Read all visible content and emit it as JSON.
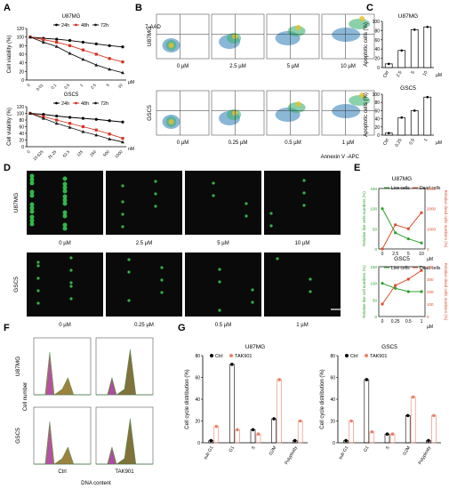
{
  "panels": {
    "A": "A",
    "B": "B",
    "C": "C",
    "D": "D",
    "E": "E",
    "F": "F",
    "G": "G"
  },
  "colors": {
    "c24h": "#000000",
    "c48h": "#d7301f",
    "c72h": "#1a1a1a",
    "live": "#2ca02c",
    "dead": "#d94f2a",
    "ctrl": "#000000",
    "tak": "#e8826b",
    "flowbg": "#2c7bb6",
    "micro_bg": "#0a0a0a",
    "micro_cell": "#39d353"
  },
  "A": {
    "top": {
      "cell": "U87MG",
      "legend": [
        "24h",
        "48h",
        "72h"
      ],
      "ylabel": "Cell viability (%)",
      "yticks": [
        "0",
        "20",
        "40",
        "60",
        "80",
        "100",
        "120"
      ],
      "xticks": [
        "0",
        "0.01",
        "0.1",
        "0.5",
        "1",
        "2.5",
        "5",
        "10"
      ],
      "unit": "µM"
    },
    "bottom": {
      "cell": "GSC5",
      "legend": [
        "24h",
        "48h",
        "72h"
      ],
      "ylabel": "Cell viability (%)",
      "yticks": [
        "0",
        "20",
        "40",
        "60",
        "80",
        "100",
        "120"
      ],
      "xticks": [
        "0",
        "15.625",
        "31.25",
        "62.5",
        "125",
        "250",
        "500",
        "1000"
      ],
      "unit": "nM"
    }
  },
  "B": {
    "ylabel": "7-AAD",
    "xlabel": "Annexin V -APC",
    "row1": {
      "cell": "U87MG",
      "doses": [
        "0 µM",
        "2.5 µM",
        "5 µM",
        "10 µM"
      ]
    },
    "row2": {
      "cell": "GSC5",
      "doses": [
        "0 µM",
        "0.25 µM",
        "0.5 µM",
        "1 µM"
      ]
    }
  },
  "C": {
    "top": {
      "cell": "U87MG",
      "ylabel": "Apoptotic cells (%)",
      "yticks": [
        "0",
        "20",
        "40",
        "60",
        "80",
        "100"
      ],
      "xticks": [
        "Ctrl",
        "2.5",
        "5",
        "10"
      ],
      "unit": "µM"
    },
    "bottom": {
      "cell": "GSC5",
      "ylabel": "Apoptotic cells (%)",
      "yticks": [
        "0",
        "20",
        "40",
        "60",
        "80",
        "100"
      ],
      "xticks": [
        "Ctrl",
        "0.25",
        "0.5",
        "1"
      ],
      "unit": "µM"
    }
  },
  "D": {
    "row1": {
      "cell": "U87MG",
      "doses": [
        "0 µM",
        "2.5 µM",
        "5 µM",
        "10 µM"
      ]
    },
    "row2": {
      "cell": "GSC5",
      "doses": [
        "0 µM",
        "0.25 µM",
        "0.5 µM",
        "1 µM"
      ]
    }
  },
  "E": {
    "top": {
      "cell": "U87MG",
      "legend": [
        "Live cells",
        "Dead cells"
      ],
      "ylabel_left": "Relative live cells numbers (%)",
      "ylabel_right": "Relative dead cells numbers (%)",
      "yticks_left": [
        "0",
        "50",
        "100",
        "150"
      ],
      "yticks_right": [
        "0",
        "1000",
        "2000",
        "3000"
      ],
      "xticks": [
        "0",
        "2.5",
        "5",
        "10"
      ],
      "unit": "µM"
    },
    "bottom": {
      "cell": "GSC5",
      "legend": [
        "Live cells",
        "Dead cells"
      ],
      "ylabel_left": "Relative live cell numbers (%)",
      "ylabel_right": "Relative dead cells numbers (%)",
      "yticks_left": [
        "0",
        "50",
        "100",
        "150"
      ],
      "yticks_right": [
        "0",
        "100",
        "200",
        "300",
        "400"
      ],
      "xticks": [
        "0",
        "0.25",
        "0.5",
        "1"
      ],
      "unit": "µM"
    }
  },
  "F": {
    "ylabel": "Cell number",
    "xlabel": "DNA content",
    "rows": [
      "U87MG",
      "GSC5"
    ],
    "cols": [
      "Ctrl",
      "TAK901"
    ]
  },
  "G": {
    "legend": [
      "Ctrl",
      "TAK901"
    ],
    "left": {
      "cell": "U87MG",
      "ylabel": "Cell cycle distribution (%)",
      "yticks": [
        "0",
        "20",
        "40",
        "60",
        "80"
      ],
      "xticks": [
        "sub G1",
        "G1",
        "S",
        "G2M",
        "Polyploidy"
      ]
    },
    "right": {
      "cell": "GSC5",
      "ylabel": "Cell cycle distribution (%)",
      "yticks": [
        "0",
        "20",
        "40",
        "60",
        "80"
      ],
      "xticks": [
        "sub G1",
        "G1",
        "S",
        "G2M",
        "Polyploidy"
      ]
    }
  },
  "chart_data": [
    {
      "type": "line",
      "title": "U87MG",
      "ylabel": "Cell viability (%)",
      "ylim": [
        0,
        120
      ],
      "x": [
        "0",
        "0.01",
        "0.1",
        "0.5",
        "1",
        "2.5",
        "5",
        "10"
      ],
      "series": [
        {
          "name": "24h",
          "values": [
            100,
            97,
            95,
            92,
            88,
            84,
            80,
            77
          ]
        },
        {
          "name": "48h",
          "values": [
            100,
            94,
            88,
            80,
            70,
            60,
            50,
            42
          ]
        },
        {
          "name": "72h",
          "values": [
            100,
            88,
            78,
            62,
            48,
            35,
            25,
            17
          ]
        }
      ]
    },
    {
      "type": "line",
      "title": "GSC5",
      "ylabel": "Cell viability (%)",
      "ylim": [
        0,
        120
      ],
      "x": [
        "0",
        "15.625",
        "31.25",
        "62.5",
        "125",
        "250",
        "500",
        "1000"
      ],
      "series": [
        {
          "name": "24h",
          "values": [
            100,
            97,
            92,
            88,
            85,
            82,
            78,
            74
          ]
        },
        {
          "name": "48h",
          "values": [
            100,
            90,
            80,
            70,
            60,
            50,
            38,
            25
          ]
        },
        {
          "name": "72h",
          "values": [
            100,
            85,
            70,
            58,
            45,
            35,
            23,
            14
          ]
        }
      ]
    },
    {
      "type": "bar",
      "title": "U87MG",
      "ylabel": "Apoptotic cells (%)",
      "ylim": [
        0,
        100
      ],
      "categories": [
        "Ctrl",
        "2.5",
        "5",
        "10"
      ],
      "values": [
        8,
        37,
        82,
        88
      ]
    },
    {
      "type": "bar",
      "title": "GSC5",
      "ylabel": "Apoptotic cells (%)",
      "ylim": [
        0,
        100
      ],
      "categories": [
        "Ctrl",
        "0.25",
        "0.5",
        "1"
      ],
      "values": [
        5,
        43,
        60,
        93
      ]
    },
    {
      "type": "line",
      "title": "U87MG",
      "x": [
        "0",
        "2.5",
        "5",
        "10"
      ],
      "series": [
        {
          "name": "Live cells",
          "axis": "left",
          "ylim": [
            0,
            150
          ],
          "values": [
            100,
            40,
            25,
            15
          ]
        },
        {
          "name": "Dead cells",
          "axis": "right",
          "ylim": [
            0,
            3000
          ],
          "values": [
            0,
            1200,
            1000,
            1800
          ]
        }
      ]
    },
    {
      "type": "line",
      "title": "GSC5",
      "x": [
        "0",
        "0.25",
        "0.5",
        "1"
      ],
      "series": [
        {
          "name": "Live cells",
          "axis": "left",
          "ylim": [
            0,
            150
          ],
          "values": [
            100,
            85,
            75,
            75
          ]
        },
        {
          "name": "Dead cells",
          "axis": "right",
          "ylim": [
            0,
            400
          ],
          "values": [
            100,
            250,
            300,
            370
          ]
        }
      ]
    },
    {
      "type": "bar",
      "title": "U87MG",
      "ylabel": "Cell cycle distribution (%)",
      "ylim": [
        0,
        80
      ],
      "categories": [
        "sub G1",
        "G1",
        "S",
        "G2M",
        "Polyploidy"
      ],
      "series": [
        {
          "name": "Ctrl",
          "values": [
            2,
            72,
            12,
            22,
            2
          ]
        },
        {
          "name": "TAK901",
          "values": [
            15,
            12,
            8,
            58,
            20
          ]
        }
      ]
    },
    {
      "type": "bar",
      "title": "GSC5",
      "ylabel": "Cell cycle distribution (%)",
      "ylim": [
        0,
        80
      ],
      "categories": [
        "sub G1",
        "G1",
        "S",
        "G2M",
        "Polyploidy"
      ],
      "series": [
        {
          "name": "Ctrl",
          "values": [
            2,
            58,
            8,
            25,
            2
          ]
        },
        {
          "name": "TAK901",
          "values": [
            20,
            10,
            8,
            42,
            25
          ]
        }
      ]
    }
  ]
}
